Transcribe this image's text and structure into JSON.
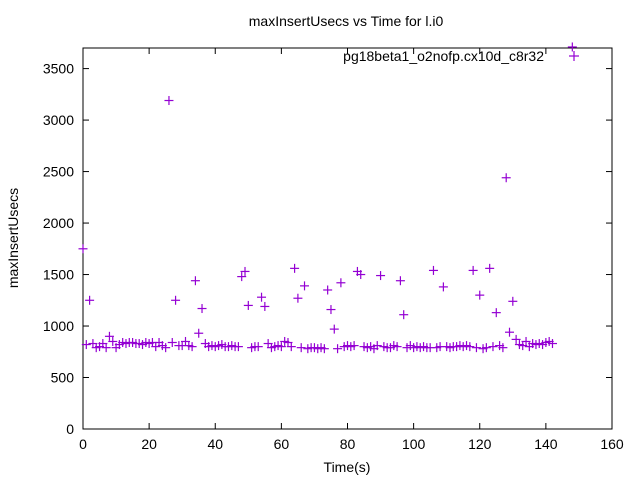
{
  "chart_data": {
    "type": "scatter",
    "title": "maxInsertUsecs vs Time for l.i0",
    "xlabel": "Time(s)",
    "ylabel": "maxInsertUsecs",
    "xlim": [
      0,
      160
    ],
    "ylim": [
      0,
      3700
    ],
    "xticks": [
      0,
      20,
      40,
      60,
      80,
      100,
      120,
      140,
      160
    ],
    "yticks": [
      0,
      500,
      1000,
      1500,
      2000,
      2500,
      3000,
      3500
    ],
    "legend": "top-right",
    "color": "#9400d3",
    "series": [
      {
        "name": "pg18beta1_o2nofp.cx10d_c8r32",
        "x": [
          0,
          1,
          2,
          3,
          4,
          5,
          6,
          7,
          8,
          9,
          10,
          11,
          12,
          13,
          14,
          15,
          16,
          17,
          18,
          19,
          20,
          21,
          22,
          23,
          24,
          25,
          26,
          27,
          28,
          29,
          30,
          31,
          32,
          33,
          34,
          35,
          36,
          37,
          38,
          39,
          40,
          41,
          42,
          43,
          44,
          45,
          46,
          47,
          48,
          49,
          50,
          51,
          52,
          53,
          54,
          55,
          56,
          57,
          58,
          59,
          60,
          61,
          62,
          63,
          64,
          65,
          66,
          67,
          68,
          69,
          70,
          71,
          72,
          73,
          74,
          75,
          76,
          77,
          78,
          79,
          80,
          81,
          82,
          83,
          84,
          85,
          86,
          87,
          88,
          89,
          90,
          91,
          92,
          93,
          94,
          95,
          96,
          97,
          98,
          99,
          100,
          101,
          102,
          103,
          104,
          105,
          106,
          107,
          108,
          109,
          110,
          111,
          112,
          113,
          114,
          115,
          116,
          117,
          118,
          119,
          120,
          121,
          122,
          123,
          124,
          125,
          126,
          127,
          128,
          129,
          130,
          131,
          132,
          133,
          134,
          135,
          136,
          137,
          138,
          139,
          140,
          141,
          142,
          148
        ],
        "y": [
          1750,
          820,
          1250,
          830,
          790,
          800,
          830,
          790,
          900,
          850,
          790,
          820,
          840,
          830,
          840,
          840,
          830,
          830,
          820,
          840,
          830,
          840,
          800,
          840,
          810,
          790,
          3190,
          840,
          1250,
          810,
          810,
          850,
          810,
          800,
          1440,
          930,
          1170,
          830,
          800,
          810,
          800,
          810,
          820,
          800,
          800,
          810,
          800,
          800,
          1480,
          1530,
          1200,
          790,
          800,
          800,
          1280,
          1190,
          830,
          790,
          800,
          810,
          800,
          850,
          840,
          800,
          1560,
          1270,
          790,
          1390,
          780,
          790,
          790,
          780,
          790,
          780,
          1350,
          1160,
          970,
          780,
          1420,
          800,
          810,
          800,
          810,
          1530,
          1500,
          800,
          790,
          800,
          780,
          810,
          1490,
          800,
          790,
          790,
          810,
          800,
          1440,
          1110,
          790,
          810,
          790,
          800,
          790,
          800,
          790,
          790,
          1540,
          790,
          800,
          1380,
          800,
          790,
          800,
          800,
          810,
          800,
          810,
          800,
          1540,
          790,
          1300,
          780,
          790,
          1560,
          800,
          1130,
          810,
          790,
          2440,
          940,
          1240,
          870,
          820,
          810,
          850,
          800,
          830,
          820,
          830,
          820,
          840,
          850,
          830,
          3710
        ]
      }
    ]
  }
}
